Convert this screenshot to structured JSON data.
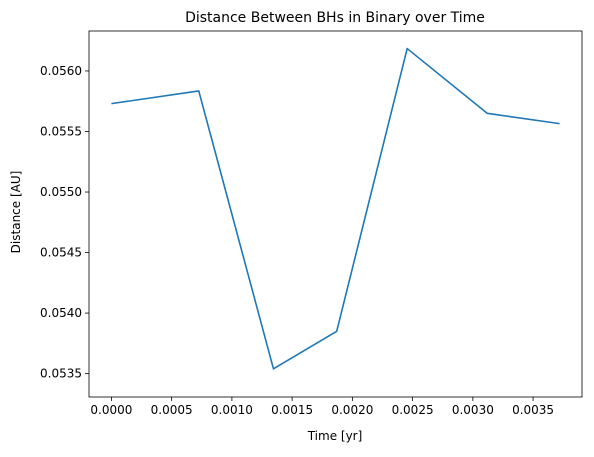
{
  "chart_data": {
    "type": "line",
    "title": "Distance Between BHs in Binary over Time",
    "xlabel": "Time [yr]",
    "ylabel": "Distance [AU]",
    "xlim": [
      -0.000186,
      0.003906
    ],
    "ylim": [
      0.053307,
      0.05633
    ],
    "xticks": [
      0.0,
      0.0005,
      0.001,
      0.0015,
      0.002,
      0.0025,
      0.003,
      0.0035
    ],
    "xtick_labels": [
      "0.0000",
      "0.0005",
      "0.0010",
      "0.0015",
      "0.0020",
      "0.0025",
      "0.0030",
      "0.0035"
    ],
    "yticks": [
      0.0535,
      0.054,
      0.0545,
      0.055,
      0.0555,
      0.056
    ],
    "ytick_labels": [
      "0.0535",
      "0.0540",
      "0.0545",
      "0.0550",
      "0.0555",
      "0.0560"
    ],
    "grid": false,
    "series": [
      {
        "color": "#1f77b4",
        "x": [
          0.0,
          0.000725,
          0.001345,
          0.00187,
          0.002455,
          0.00312,
          0.00372
        ],
        "y": [
          0.05573,
          0.055835,
          0.05354,
          0.05385,
          0.056185,
          0.05565,
          0.055565
        ]
      }
    ]
  }
}
